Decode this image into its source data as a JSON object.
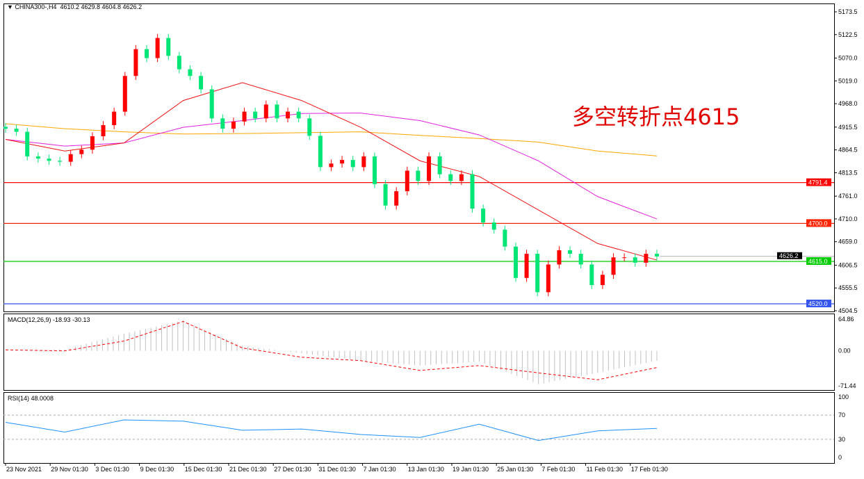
{
  "header": {
    "symbol": "CHINA300-,H4",
    "ohlc": "4610.2 4629.8 4604.8 4626.2"
  },
  "annotation": "多空转折点4615",
  "price_axis": {
    "ticks": [
      "5173.5",
      "5122.5",
      "5070.0",
      "5019.0",
      "4968.0",
      "4915.5",
      "4864.5",
      "4813.5",
      "4761.0",
      "4710.0",
      "4659.0",
      "4606.5",
      "4555.5",
      "4504.5"
    ],
    "min": 4504.5,
    "max": 5173.5
  },
  "levels": [
    {
      "value": 4791.4,
      "label": "4791.4",
      "color": "#ff0000"
    },
    {
      "value": 4700.0,
      "label": "4700.0",
      "color": "#ff2200"
    },
    {
      "value": 4615.0,
      "label": "4615.0",
      "color": "#00cc00"
    },
    {
      "value": 4520.0,
      "label": "4520.0",
      "color": "#3355ee"
    }
  ],
  "current_price": {
    "value": 4626.2,
    "label": "4626.2"
  },
  "time_axis": [
    "23 Nov 2021",
    "29 Nov 01:30",
    "3 Dec 01:30",
    "9 Dec 01:30",
    "15 Dec 01:30",
    "21 Dec 01:30",
    "27 Dec 01:30",
    "31 Dec 01:30",
    "7 Jan 01:30",
    "13 Jan 01:30",
    "19 Jan 01:30",
    "25 Jan 01:30",
    "7 Feb 01:30",
    "11 Feb 01:30",
    "17 Feb 01:30"
  ],
  "colors": {
    "up": "#ff0000",
    "down": "#00e676",
    "ma_fast": "#ee1111",
    "ma_mid": "#e020e0",
    "ma_slow": "#ffa500",
    "macd_hist": "#c0c0c0",
    "macd_signal": "#ff0000",
    "rsi": "#1e90ff"
  },
  "chart_data": {
    "type": "candlestick",
    "closes": [
      4912,
      4905,
      4850,
      4845,
      4840,
      4838,
      4855,
      4865,
      4895,
      4920,
      4950,
      5030,
      5090,
      5070,
      5115,
      5075,
      5045,
      5030,
      5000,
      4935,
      4912,
      4928,
      4950,
      4935,
      4966,
      4935,
      4950,
      4935,
      4896,
      4826,
      4834,
      4842,
      4826,
      4850,
      4788,
      4740,
      4772,
      4818,
      4795,
      4850,
      4810,
      4795,
      4810,
      4733,
      4702,
      4686,
      4648,
      4578,
      4632,
      4546,
      4608,
      4640,
      4632,
      4608,
      4562,
      4585,
      4624,
      4624,
      4612,
      4632,
      4626
    ],
    "ma": [
      {
        "values": [
          4888,
          4862,
          4880,
          4975,
          5015,
          4975,
          4915,
          4840,
          4805,
          4730,
          4655,
          4618
        ]
      },
      {
        "values": [
          4888,
          4873,
          4880,
          4915,
          4930,
          4946,
          4947,
          4930,
          4898,
          4840,
          4760,
          4710
        ]
      },
      {
        "values": [
          4923,
          4912,
          4905,
          4900,
          4901,
          4903,
          4905,
          4897,
          4890,
          4882,
          4862,
          4851
        ]
      }
    ],
    "macd": {
      "label": "MACD(12,26,9) -18.93 -30.13",
      "ticks": [
        "64.86",
        "0.00",
        "-71.44"
      ],
      "max": 64.86,
      "min": -71.44,
      "histogram": [
        0,
        3,
        35,
        62,
        10,
        -5,
        -20,
        -30,
        -22,
        -68,
        -45,
        -20
      ],
      "signal": [
        2,
        0,
        20,
        60,
        6,
        -13,
        -20,
        -40,
        -30,
        -45,
        -59,
        -34
      ]
    },
    "rsi": {
      "label": "RSI(14) 48.0008",
      "ticks": [
        "100",
        "70",
        "30",
        "0"
      ],
      "levels": [
        70,
        30
      ],
      "values": [
        58,
        42,
        62,
        60,
        45,
        47,
        38,
        33,
        55,
        28,
        44,
        48
      ]
    }
  }
}
